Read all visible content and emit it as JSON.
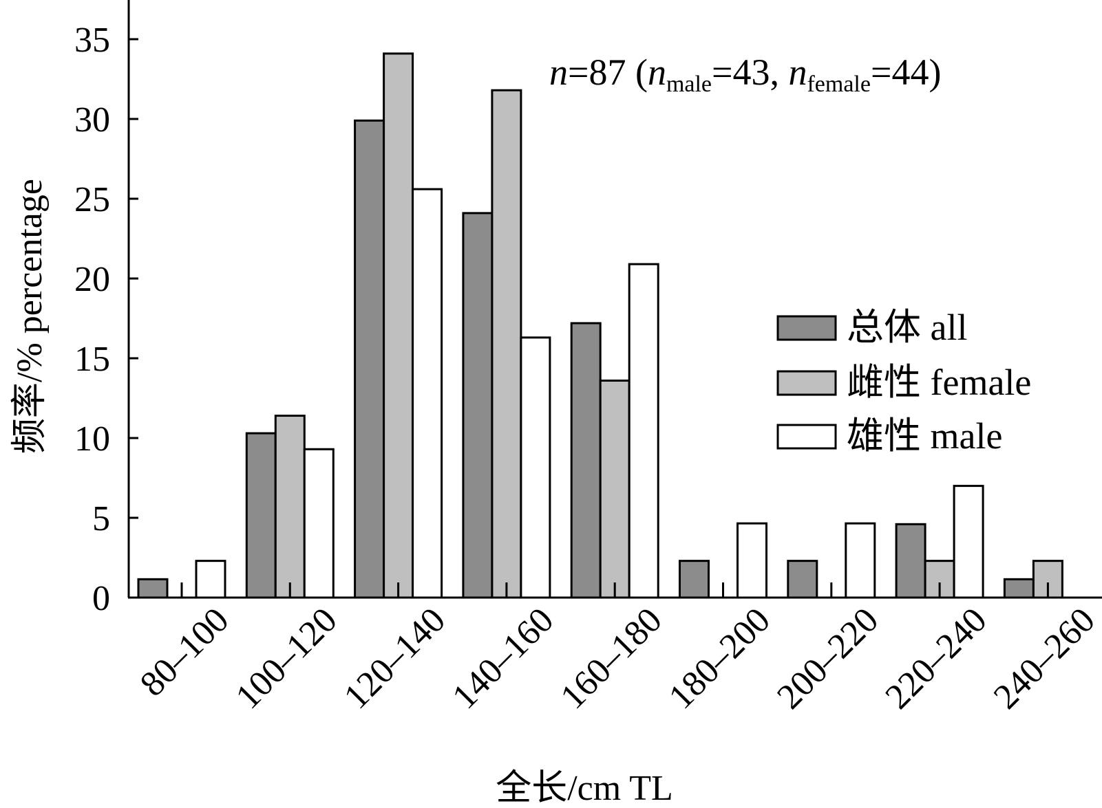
{
  "chart_data": {
    "type": "bar",
    "title": "",
    "xlabel": "全长/cm TL",
    "ylabel": "频率/% percentage",
    "ylim": [
      0,
      37
    ],
    "yticks": [
      "0",
      "5",
      "10",
      "15",
      "20",
      "25",
      "30",
      "35"
    ],
    "categories": [
      "80–100",
      "100–120",
      "120–140",
      "140–160",
      "160–180",
      "180–200",
      "200–220",
      "220–240",
      "240–260"
    ],
    "series": [
      {
        "name": "总体 all",
        "color": "#8c8c8c",
        "values": [
          1.15,
          10.3,
          29.9,
          24.1,
          17.2,
          2.3,
          2.3,
          4.6,
          1.15
        ]
      },
      {
        "name": "雌性 female",
        "color": "#bfbfbf",
        "values": [
          0,
          11.4,
          34.1,
          31.8,
          13.6,
          0,
          0,
          2.3,
          2.3
        ]
      },
      {
        "name": "雄性 male",
        "color": "#ffffff",
        "values": [
          2.3,
          9.3,
          25.6,
          16.3,
          20.9,
          4.65,
          4.65,
          7.0,
          0
        ]
      }
    ],
    "legend_position": "right",
    "annotation": {
      "n_symbol": "n",
      "total": "=87 (",
      "male_sub": "male",
      "male_value": "=43, ",
      "female_sub": "female",
      "female_value": "=44)"
    }
  }
}
